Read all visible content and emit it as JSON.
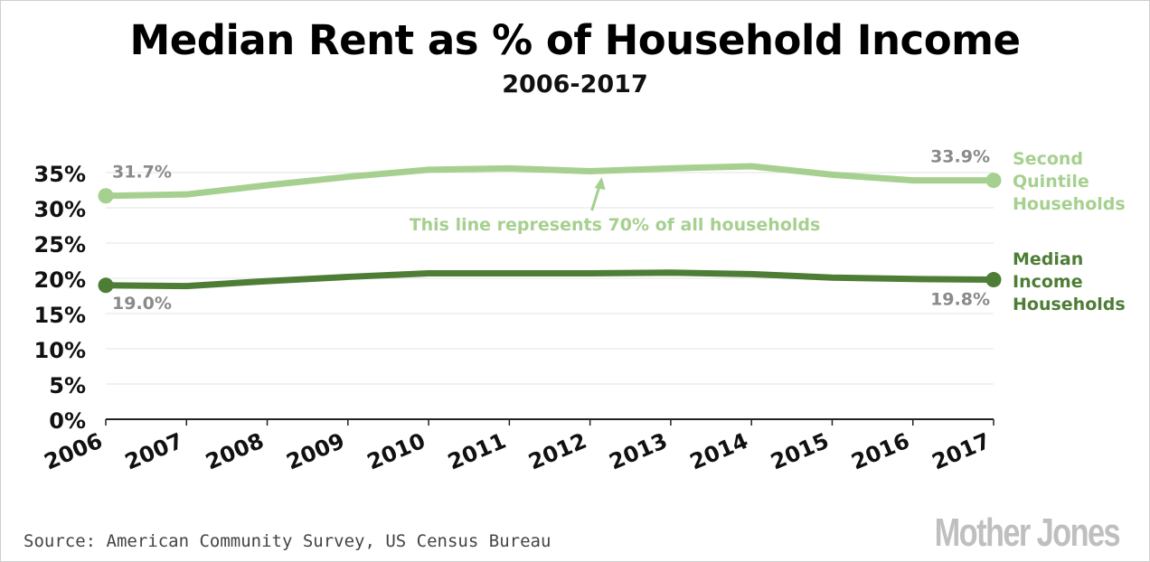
{
  "chart_data": {
    "type": "line",
    "title": "Median Rent as % of Household Income",
    "subtitle": "2006-2017",
    "x": [
      "2006",
      "2007",
      "2008",
      "2009",
      "2010",
      "2011",
      "2012",
      "2013",
      "2014",
      "2015",
      "2016",
      "2017"
    ],
    "ylim": [
      0,
      35
    ],
    "yticks": [
      0,
      5,
      10,
      15,
      20,
      25,
      30,
      35
    ],
    "ytick_labels": [
      "0%",
      "5%",
      "10%",
      "15%",
      "20%",
      "25%",
      "30%",
      "35%"
    ],
    "xlabel": "",
    "ylabel": "",
    "grid": true,
    "series": [
      {
        "name": "Second Quintile Households",
        "label_lines": [
          "Second",
          "Quintile",
          "Households"
        ],
        "color": "#a6d08f",
        "values": [
          31.7,
          31.9,
          33.2,
          34.4,
          35.4,
          35.6,
          35.2,
          35.6,
          35.9,
          34.7,
          33.9,
          33.9
        ],
        "start_label": "31.7%",
        "end_label": "33.9%"
      },
      {
        "name": "Median Income Households",
        "label_lines": [
          "Median",
          "Income",
          "Households"
        ],
        "color": "#4e7d36",
        "values": [
          19.0,
          18.9,
          19.6,
          20.2,
          20.7,
          20.7,
          20.7,
          20.8,
          20.6,
          20.1,
          19.9,
          19.8
        ],
        "start_label": "19.0%",
        "end_label": "19.8%"
      }
    ],
    "annotation": {
      "text": "This line represents 70% of all households",
      "color": "#a6d08f",
      "points_to_year": "2012"
    }
  },
  "footer": {
    "source": "Source: American Community Survey, US Census Bureau",
    "logo_text": "Mother Jones"
  }
}
